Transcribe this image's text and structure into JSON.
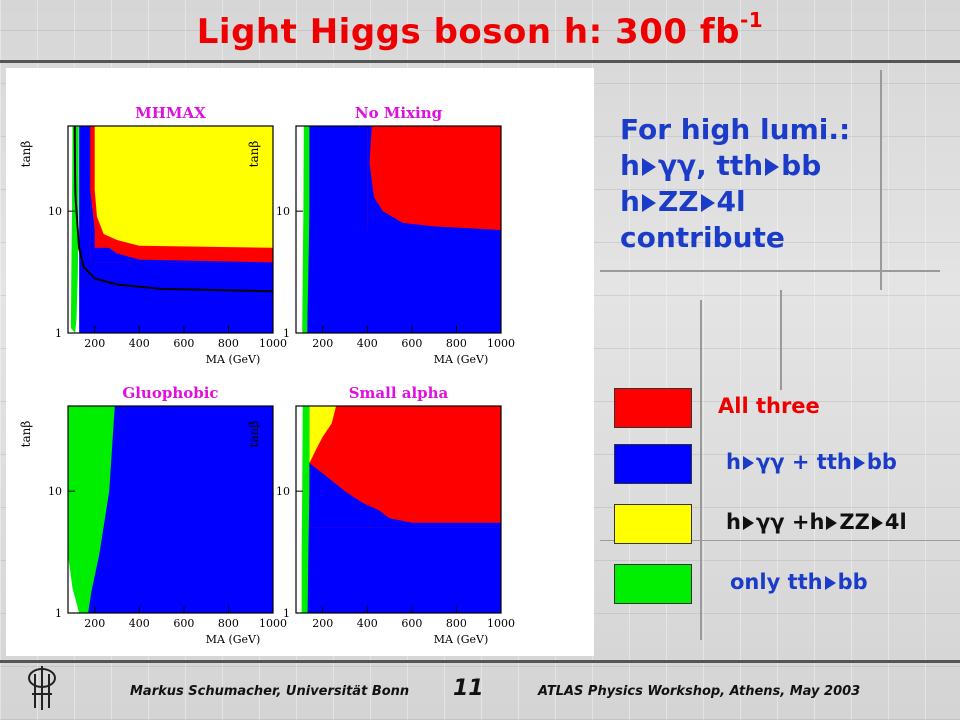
{
  "title": {
    "main": "Light Higgs boson h: 300 fb",
    "sup": "-1"
  },
  "info": {
    "line1": "For high lumi.:",
    "line2_a": "h",
    "line2_b": "γγ, tth",
    "line2_c": "bb",
    "line3_a": "h",
    "line3_b": "ZZ",
    "line3_c": "4l",
    "line4": "contribute"
  },
  "legend": [
    {
      "color": "#ff0000",
      "label_text_color": "#ee0000",
      "parts": [
        "All three"
      ]
    },
    {
      "color": "#0000ff",
      "label_text_color": "#1a3cc8",
      "parts": [
        "h",
        "γγ + tth",
        "bb"
      ]
    },
    {
      "color": "#ffff00",
      "label_text_color": "#111111",
      "parts": [
        "h",
        "γγ +h",
        "ZZ",
        "4l"
      ]
    },
    {
      "color": "#00ee00",
      "label_text_color": "#1a3cc8",
      "parts": [
        "only tth",
        "bb"
      ]
    }
  ],
  "footer": {
    "left": "Markus Schumacher,  Universität Bonn",
    "page": "11",
    "right": "ATLAS Physics Workshop, Athens, May 2003"
  },
  "chart_data": [
    {
      "type": "heatmap",
      "title": "MHMAX",
      "xlabel": "M_A (GeV)",
      "ylabel": "tanβ",
      "xlim": [
        80,
        1000
      ],
      "ylim": [
        1,
        50
      ],
      "yscale": "log",
      "xticks": [
        200,
        400,
        600,
        800,
        1000
      ],
      "yticks": [
        1,
        10
      ],
      "colors": {
        "red": "#ff0000",
        "blue": "#0000ff",
        "yellow": "#ffff00",
        "green": "#00ee00"
      },
      "regions": [
        {
          "color": "blue",
          "desc": "h→γγ + tth→bb",
          "x": [
            130,
            1000
          ],
          "y": [
            1,
            50
          ]
        },
        {
          "color": "red",
          "desc": "All three",
          "x": [
            180,
            1000
          ],
          "y": [
            3.8,
            50
          ]
        },
        {
          "color": "yellow",
          "desc": "h→γγ + h→ZZ→4l",
          "x": [
            200,
            1000
          ],
          "y": [
            5,
            50
          ]
        }
      ],
      "green_left_edge": [
        [
          100,
          50
        ],
        [
          98,
          10
        ],
        [
          95,
          3
        ],
        [
          93,
          1.1
        ]
      ],
      "green_right_edge": [
        [
          128,
          50
        ],
        [
          128,
          10
        ],
        [
          124,
          3
        ],
        [
          118,
          1.3
        ],
        [
          112,
          1
        ]
      ],
      "red_lower_boundary": [
        [
          180,
          50
        ],
        [
          180,
          15
        ],
        [
          200,
          7
        ],
        [
          230,
          5.5
        ],
        [
          300,
          4.5
        ],
        [
          400,
          4
        ],
        [
          1000,
          3.8
        ]
      ],
      "yellow_lower_boundary": [
        [
          200,
          50
        ],
        [
          200,
          15
        ],
        [
          210,
          9
        ],
        [
          240,
          6.5
        ],
        [
          300,
          5.8
        ],
        [
          400,
          5.2
        ],
        [
          1000,
          5
        ]
      ],
      "black_curve": [
        [
          110,
          50
        ],
        [
          112,
          20
        ],
        [
          113,
          14
        ],
        [
          115,
          12
        ],
        [
          118,
          10
        ],
        [
          130,
          5
        ],
        [
          150,
          3.5
        ],
        [
          200,
          2.8
        ],
        [
          300,
          2.5
        ],
        [
          500,
          2.3
        ],
        [
          1000,
          2.2
        ]
      ]
    },
    {
      "type": "heatmap",
      "title": "No Mixing",
      "xlabel": "M_A (GeV)",
      "ylabel": "tanβ",
      "xlim": [
        80,
        1000
      ],
      "ylim": [
        1,
        50
      ],
      "yscale": "log",
      "xticks": [
        200,
        400,
        600,
        800,
        1000
      ],
      "yticks": [
        1,
        10
      ],
      "regions": [
        {
          "color": "blue",
          "desc": "h→γγ + tth→bb",
          "x": [
            130,
            1000
          ],
          "y": [
            1,
            50
          ]
        },
        {
          "color": "red",
          "desc": "All three",
          "x": [
            400,
            1000
          ],
          "y": [
            7,
            50
          ]
        }
      ],
      "green_left_edge": [
        [
          115,
          50
        ],
        [
          113,
          10
        ],
        [
          110,
          3
        ],
        [
          108,
          1
        ]
      ],
      "green_right_edge": [
        [
          140,
          50
        ],
        [
          140,
          10
        ],
        [
          135,
          3
        ],
        [
          130,
          1
        ]
      ],
      "red_lower_boundary": [
        [
          420,
          50
        ],
        [
          410,
          25
        ],
        [
          430,
          13
        ],
        [
          470,
          10
        ],
        [
          560,
          8
        ],
        [
          700,
          7.5
        ],
        [
          1000,
          7
        ]
      ]
    },
    {
      "type": "heatmap",
      "title": "Gluophobic",
      "xlabel": "M_A (GeV)",
      "ylabel": "tanβ",
      "xlim": [
        80,
        1000
      ],
      "ylim": [
        1,
        50
      ],
      "yscale": "log",
      "xticks": [
        200,
        400,
        600,
        800,
        1000
      ],
      "yticks": [
        1,
        10
      ],
      "regions": [
        {
          "color": "blue",
          "desc": "h→γγ + tth→bb",
          "x": [
            160,
            1000
          ],
          "y": [
            1,
            50
          ]
        },
        {
          "color": "green",
          "desc": "only tth→bb",
          "x": [
            80,
            300
          ],
          "y": [
            1,
            50
          ]
        }
      ],
      "green_left_edge": [
        [
          80,
          50
        ],
        [
          80,
          10
        ],
        [
          80,
          3
        ],
        [
          100,
          1.6
        ],
        [
          130,
          1
        ]
      ],
      "green_right_edge": [
        [
          290,
          50
        ],
        [
          265,
          10
        ],
        [
          220,
          3
        ],
        [
          185,
          1.5
        ],
        [
          170,
          1
        ]
      ]
    },
    {
      "type": "heatmap",
      "title": "Small alpha",
      "xlabel": "M_A (GeV)",
      "ylabel": "tanβ",
      "xlim": [
        80,
        1000
      ],
      "ylim": [
        1,
        50
      ],
      "yscale": "log",
      "xticks": [
        200,
        400,
        600,
        800,
        1000
      ],
      "yticks": [
        1,
        10
      ],
      "regions": [
        {
          "color": "blue",
          "desc": "h→γγ + tth→bb",
          "x": [
            130,
            1000
          ],
          "y": [
            1,
            50
          ]
        },
        {
          "color": "red",
          "desc": "All three",
          "x": [
            140,
            1000
          ],
          "y": [
            5,
            50
          ]
        },
        {
          "color": "yellow",
          "desc": "h→γγ + h→ZZ→4l",
          "x": [
            140,
            260
          ],
          "y": [
            17,
            50
          ]
        }
      ],
      "green_left_edge": [
        [
          110,
          50
        ],
        [
          108,
          10
        ],
        [
          105,
          3
        ],
        [
          105,
          1
        ]
      ],
      "green_right_edge": [
        [
          140,
          50
        ],
        [
          140,
          10
        ],
        [
          135,
          3
        ],
        [
          132,
          1
        ]
      ],
      "red_lower_boundary": [
        [
          140,
          17
        ],
        [
          200,
          14
        ],
        [
          300,
          10
        ],
        [
          380,
          8
        ],
        [
          450,
          7
        ],
        [
          500,
          6
        ],
        [
          600,
          5.5
        ],
        [
          1000,
          5.5
        ]
      ],
      "yellow_boundary": [
        [
          140,
          17
        ],
        [
          170,
          22
        ],
        [
          200,
          28
        ],
        [
          240,
          36
        ],
        [
          260,
          50
        ]
      ]
    }
  ]
}
